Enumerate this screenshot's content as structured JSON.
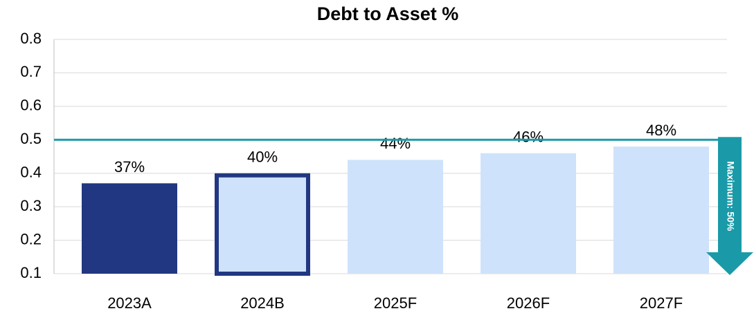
{
  "chart_data": {
    "type": "bar",
    "title": "Debt to Asset %",
    "categories": [
      "2023A",
      "2024B",
      "2025F",
      "2026F",
      "2027F"
    ],
    "values": [
      0.37,
      0.4,
      0.44,
      0.46,
      0.48
    ],
    "value_labels": [
      "37%",
      "40%",
      "44%",
      "46%",
      "48%"
    ],
    "colors": [
      "#213781",
      "#cfe2fb",
      "#cfe2fb",
      "#cfe2fb",
      "#cfe2fb"
    ],
    "edgecolors": [
      "#213781",
      "#213781",
      "#cfe2fb",
      "#cfe2fb",
      "#cfe2fb"
    ],
    "ylim": [
      0.1,
      0.8
    ],
    "yticks": [
      0.1,
      0.2,
      0.3,
      0.4,
      0.5,
      0.6,
      0.7,
      0.8
    ],
    "grid": true,
    "reference_line": {
      "value": 0.5,
      "label": "Maximum: 50%",
      "color": "#1a9aa8"
    }
  }
}
